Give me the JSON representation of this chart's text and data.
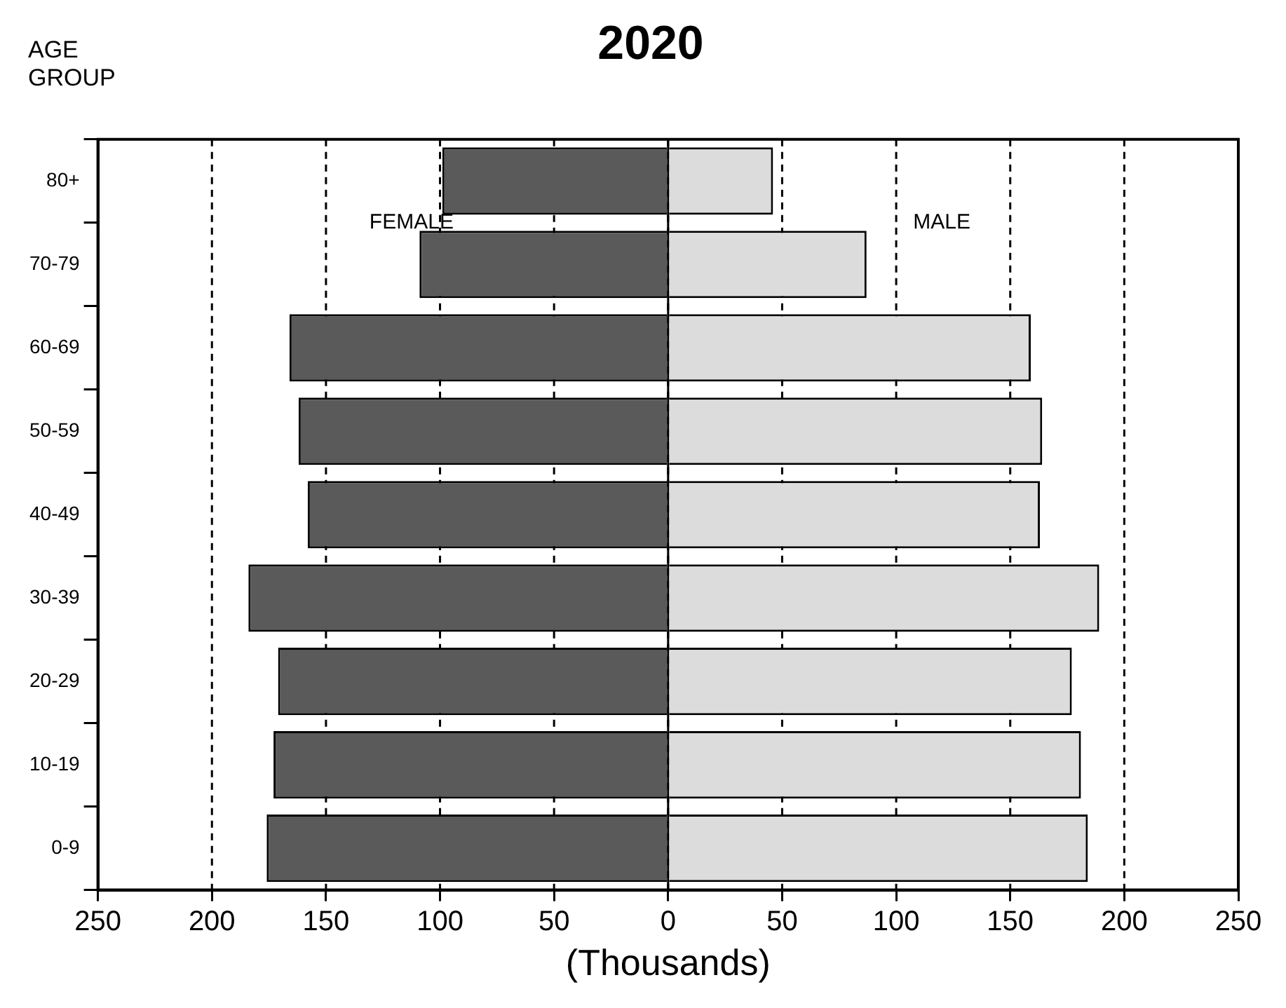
{
  "chart_data": {
    "type": "bar",
    "title": "2020",
    "ylabel": "AGE GROUP",
    "xlabel": "(Thousands)",
    "orientation": "horizontal",
    "stacked": true,
    "categories": [
      "80+",
      "70-79",
      "60-69",
      "50-59",
      "40-49",
      "30-39",
      "20-29",
      "10-19",
      "0-9"
    ],
    "series": [
      {
        "name": "FEMALE",
        "color": "#5a5a5a",
        "values": [
          -99,
          -109,
          -166,
          -162,
          -158,
          -184,
          -171,
          -173,
          -176
        ]
      },
      {
        "name": "MALE",
        "color": "#dcdcdc",
        "values": [
          46,
          87,
          159,
          164,
          163,
          189,
          177,
          181,
          184
        ]
      }
    ],
    "xlim": [
      -250,
      250
    ],
    "xticks": [
      {
        "value": -250,
        "label": "250"
      },
      {
        "value": -200,
        "label": "200"
      },
      {
        "value": -150,
        "label": "150"
      },
      {
        "value": -100,
        "label": "100"
      },
      {
        "value": -50,
        "label": "50"
      },
      0,
      50,
      100,
      150,
      200,
      250
    ],
    "grid": "x",
    "line_style": "dashed",
    "legend": false
  }
}
